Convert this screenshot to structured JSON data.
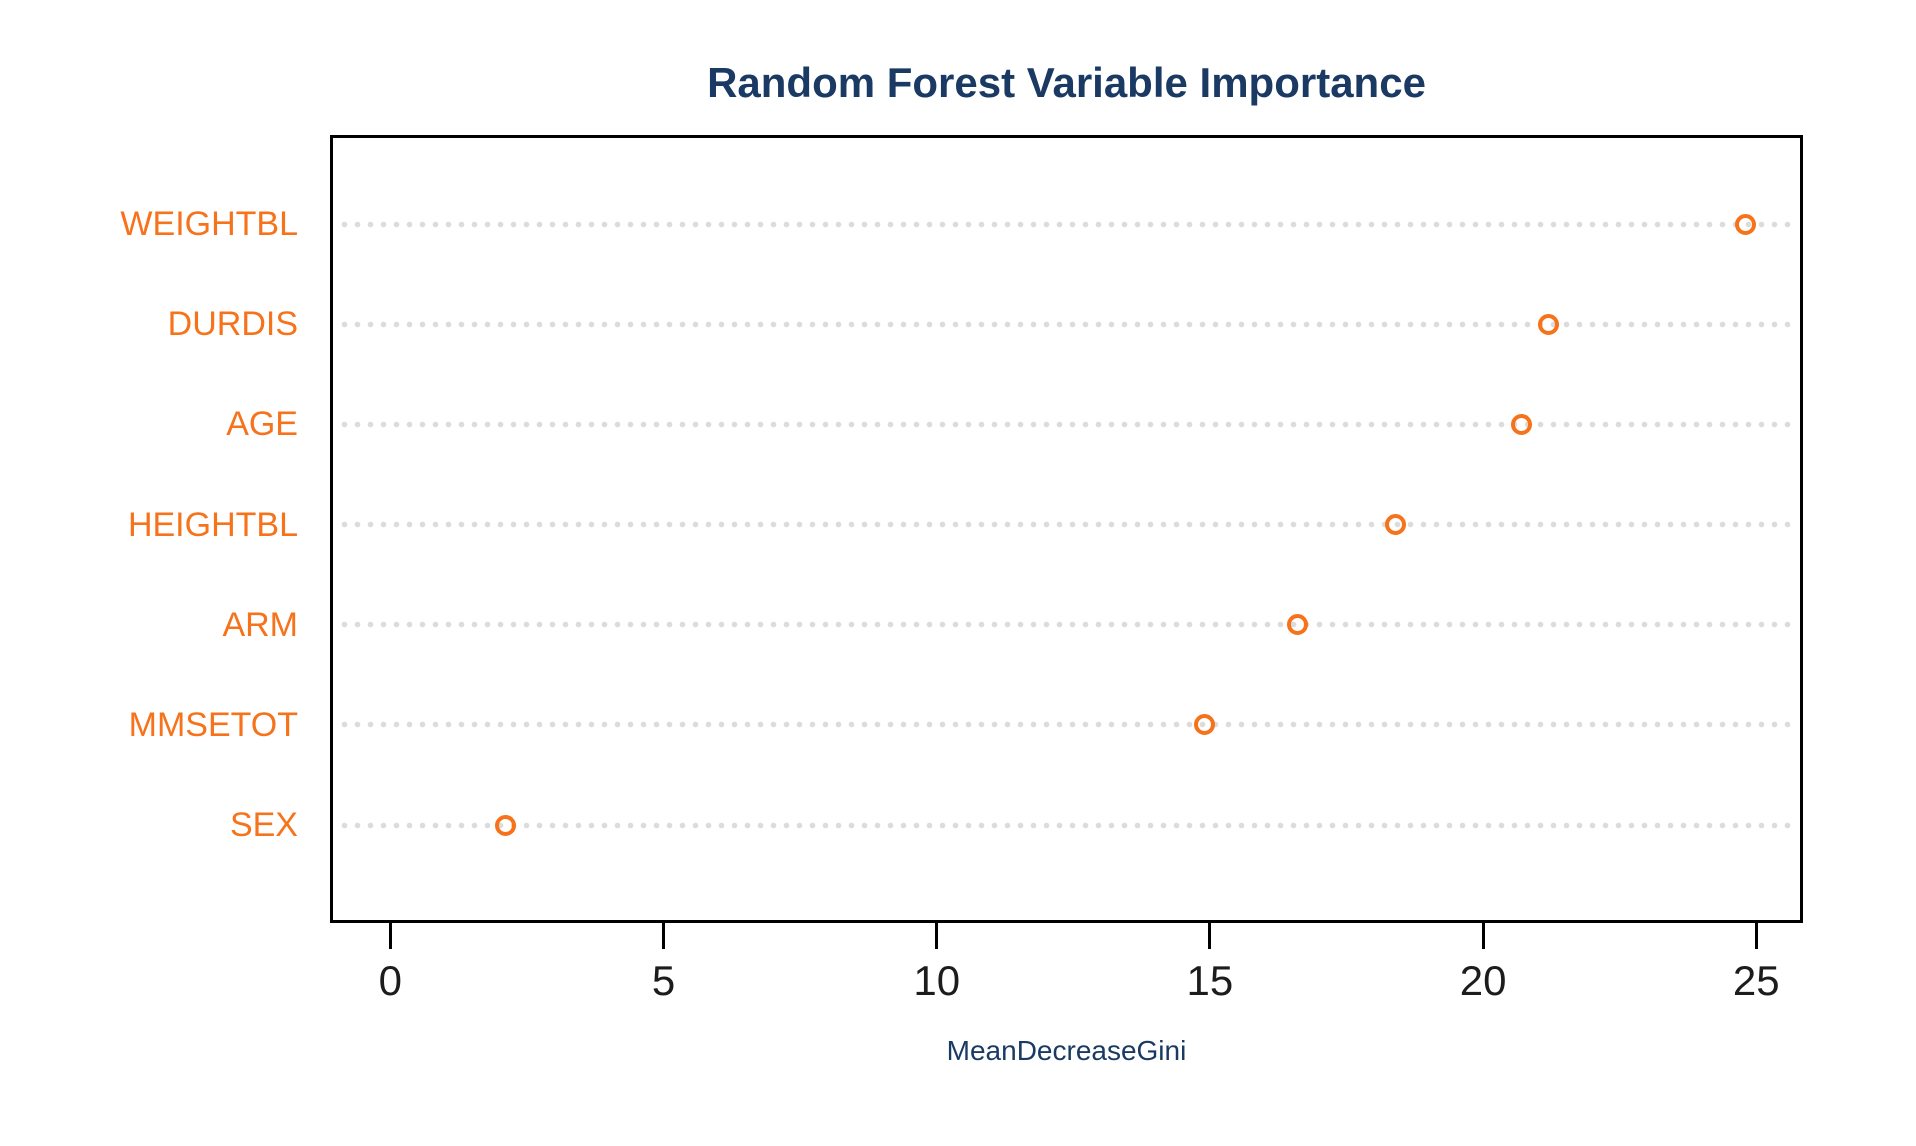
{
  "chart_data": {
    "type": "scatter",
    "variant": "dot-chart",
    "title": "Random Forest Variable Importance",
    "xlabel": "MeanDecreaseGini",
    "ylabel": "",
    "categories": [
      "WEIGHTBL",
      "DURDIS",
      "AGE",
      "HEIGHTBL",
      "ARM",
      "MMSETOT",
      "SEX"
    ],
    "values": [
      24.8,
      21.2,
      20.7,
      18.4,
      16.6,
      14.9,
      2.1
    ],
    "x_ticks": [
      0,
      5,
      10,
      15,
      20,
      25
    ],
    "xlim": [
      -1.05,
      25.8
    ],
    "grid": "dotted horizontal gridlines per category",
    "legend": "none",
    "marker": "open-circle",
    "colors": {
      "point": "#F6731B",
      "category_label": "#F6731B",
      "title": "#1A3A64",
      "axis_label": "#1A3A64",
      "tick_label": "#1C1C1C",
      "gridline": "#DCDCDC",
      "frame": "#000000",
      "background": "#FFFFFF"
    }
  }
}
